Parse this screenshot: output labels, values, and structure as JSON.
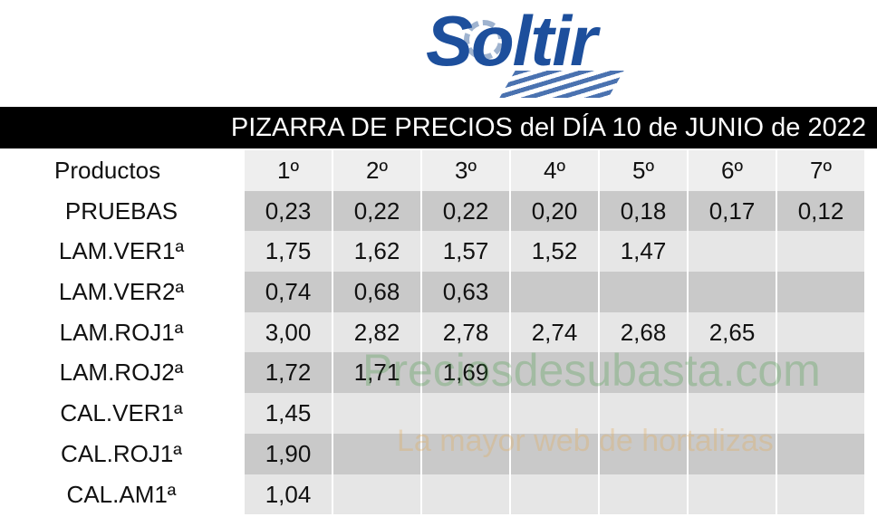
{
  "logo": "Soltir",
  "title": "PIZARRA DE PRECIOS del DÍA 10 de JUNIO de 2022",
  "watermark": {
    "site": "Preciosdesubasta.com",
    "tagline": "La mayor web de hortalizas"
  },
  "table": {
    "header": [
      "Productos",
      "1º",
      "2º",
      "3º",
      "4º",
      "5º",
      "6º",
      "7º"
    ],
    "rows": [
      {
        "product": "PRUEBAS",
        "prices": [
          "0,23",
          "0,22",
          "0,22",
          "0,20",
          "0,18",
          "0,17",
          "0,12"
        ]
      },
      {
        "product": "LAM.VER1ª",
        "prices": [
          "1,75",
          "1,62",
          "1,57",
          "1,52",
          "1,47"
        ]
      },
      {
        "product": "LAM.VER2ª",
        "prices": [
          "0,74",
          "0,68",
          "0,63"
        ]
      },
      {
        "product": "LAM.ROJ1ª",
        "prices": [
          "3,00",
          "2,82",
          "2,78",
          "2,74",
          "2,68",
          "2,65"
        ]
      },
      {
        "product": "LAM.ROJ2ª",
        "prices": [
          "1,72",
          "1,71",
          "1,69"
        ]
      },
      {
        "product": "CAL.VER1ª",
        "prices": [
          "1,45"
        ]
      },
      {
        "product": "CAL.ROJ1ª",
        "prices": [
          "1,90"
        ]
      },
      {
        "product": "CAL.AM1ª",
        "prices": [
          "1,04"
        ]
      }
    ]
  }
}
